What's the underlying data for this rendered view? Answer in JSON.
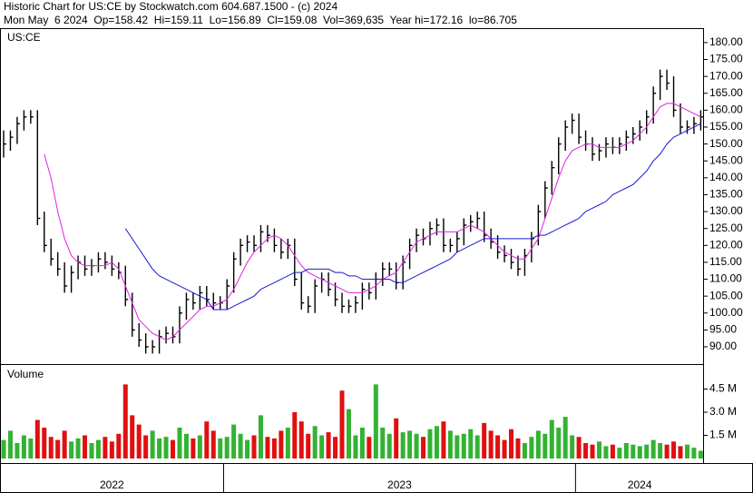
{
  "chart_data": {
    "type": "stock",
    "title": "Historic Chart for US:CE by Stockwatch.com 604.687.1500 - (c) 2024",
    "subtitle": "Mon May  6 2024  Op=158.42  Hi=159.11  Lo=156.89  Cl=159.08  Vol=369,635  Year hi=172.16  lo=86.705",
    "symbol_label": "US:CE",
    "volume_label": "Volume",
    "bar_color": "#000000",
    "ylim": [
      84.9,
      184
    ],
    "yticks": [
      {
        "value": 90,
        "label": "90.00"
      },
      {
        "value": 95,
        "label": "95.00"
      },
      {
        "value": 100,
        "label": "100.00"
      },
      {
        "value": 105,
        "label": "105.00"
      },
      {
        "value": 110,
        "label": "110.00"
      },
      {
        "value": 115,
        "label": "115.00"
      },
      {
        "value": 120,
        "label": "120.00"
      },
      {
        "value": 125,
        "label": "125.00"
      },
      {
        "value": 130,
        "label": "130.00"
      },
      {
        "value": 135,
        "label": "135.00"
      },
      {
        "value": 140,
        "label": "140.00"
      },
      {
        "value": 145,
        "label": "145.00"
      },
      {
        "value": 150,
        "label": "150.00"
      },
      {
        "value": 155,
        "label": "155.00"
      },
      {
        "value": 160,
        "label": "160.00"
      },
      {
        "value": 165,
        "label": "165.00"
      },
      {
        "value": 170,
        "label": "170.00"
      },
      {
        "value": 175,
        "label": "175.00"
      },
      {
        "value": 180,
        "label": "180.00"
      }
    ],
    "high": [
      154,
      154,
      158,
      160,
      160,
      160,
      130,
      122,
      118,
      115,
      114,
      117,
      117,
      116,
      118,
      118,
      117,
      115,
      114,
      106,
      97,
      94,
      92,
      95,
      96,
      96,
      102,
      106,
      106,
      108,
      108,
      106,
      105,
      110,
      118,
      122,
      123,
      123,
      126,
      126,
      125,
      122,
      122,
      122,
      112,
      105,
      110,
      112,
      112,
      109,
      106,
      104,
      105,
      109,
      109,
      112,
      115,
      115,
      115,
      117,
      122,
      125,
      125,
      127,
      128,
      128,
      122,
      124,
      128,
      129,
      130,
      130,
      125,
      123,
      120,
      119,
      117,
      119,
      124,
      132,
      139,
      145,
      152,
      157,
      159,
      159,
      154,
      152,
      150,
      152,
      152,
      152,
      154,
      155,
      157,
      160,
      167,
      172,
      172,
      170,
      162,
      157,
      158,
      160
    ],
    "low": [
      146,
      148,
      150,
      154,
      156,
      126,
      118,
      114,
      111,
      106,
      106,
      110,
      111,
      111,
      112,
      113,
      111,
      110,
      102,
      93,
      90,
      88,
      88,
      88,
      91,
      91,
      91,
      98,
      101,
      101,
      102,
      101,
      101,
      101,
      106,
      114,
      118,
      118,
      118,
      121,
      118,
      116,
      116,
      108,
      101,
      100,
      100,
      106,
      105,
      102,
      100,
      100,
      100,
      101,
      104,
      104,
      108,
      111,
      107,
      107,
      113,
      118,
      120,
      120,
      123,
      118,
      118,
      118,
      120,
      124,
      125,
      121,
      119,
      116,
      115,
      113,
      111,
      111,
      115,
      120,
      128,
      135,
      141,
      148,
      153,
      150,
      148,
      145,
      145,
      146,
      147,
      147,
      148,
      150,
      151,
      153,
      156,
      163,
      166,
      158,
      153,
      153,
      153,
      154
    ],
    "close": [
      150,
      152,
      156,
      158,
      158,
      128,
      120,
      116,
      113,
      108,
      112,
      115,
      113,
      114,
      116,
      115,
      113,
      112,
      104,
      95,
      92,
      90,
      90,
      93,
      94,
      93,
      100,
      104,
      103,
      106,
      104,
      103,
      103,
      108,
      116,
      120,
      121,
      120,
      124,
      123,
      120,
      118,
      120,
      110,
      103,
      102,
      108,
      110,
      107,
      104,
      102,
      102,
      103,
      107,
      106,
      110,
      113,
      113,
      109,
      115,
      120,
      123,
      122,
      125,
      126,
      120,
      120,
      122,
      126,
      127,
      128,
      123,
      121,
      118,
      117,
      115,
      113,
      117,
      122,
      130,
      137,
      143,
      150,
      155,
      157,
      152,
      150,
      147,
      148,
      150,
      149,
      150,
      152,
      153,
      155,
      158,
      165,
      170,
      168,
      160,
      155,
      155,
      156,
      158
    ],
    "moving_averages": [
      {
        "color": "#e020e0",
        "values": [
          null,
          null,
          null,
          null,
          null,
          null,
          147,
          140,
          130,
          122,
          117,
          115,
          114,
          114,
          114,
          114,
          115,
          113,
          108,
          103,
          98,
          96,
          94,
          93,
          92,
          93,
          95,
          97,
          99,
          101,
          102,
          102,
          103,
          104,
          107,
          111,
          115,
          118,
          120,
          122,
          123,
          122,
          120,
          117,
          114,
          112,
          111,
          110,
          109,
          108,
          107,
          106,
          106,
          106,
          107,
          108,
          110,
          111,
          112,
          115,
          118,
          121,
          122,
          123,
          124,
          124,
          124,
          124,
          125,
          126,
          125,
          124,
          122,
          120,
          118,
          117,
          116,
          116,
          119,
          122,
          128,
          134,
          140,
          145,
          148,
          149,
          150,
          150,
          149,
          149,
          149,
          149,
          150,
          151,
          153,
          155,
          158,
          161,
          162,
          162,
          161,
          160,
          159,
          158
        ]
      },
      {
        "color": "#1a1ad0",
        "values": [
          null,
          null,
          null,
          null,
          null,
          null,
          null,
          null,
          null,
          null,
          null,
          null,
          null,
          null,
          null,
          null,
          null,
          null,
          125,
          122,
          119,
          116,
          113,
          111,
          110,
          109,
          108,
          107,
          106,
          105,
          104,
          101,
          101,
          101,
          102,
          103,
          104,
          105,
          107,
          108,
          109,
          110,
          111,
          112,
          112,
          113,
          113,
          113,
          113,
          112,
          112,
          111,
          111,
          110,
          110,
          110,
          110,
          110,
          109,
          109,
          110,
          111,
          112,
          113,
          114,
          115,
          116,
          118,
          119,
          120,
          121,
          122,
          122,
          122,
          122,
          122,
          122,
          122,
          122,
          123,
          123,
          124,
          125,
          126,
          127,
          128,
          130,
          131,
          132,
          133,
          135,
          136,
          137,
          138,
          140,
          142,
          145,
          147,
          150,
          152,
          153,
          154,
          155,
          156
        ]
      }
    ],
    "volume": {
      "up_color": "#33b233",
      "down_color": "#e01010",
      "ylim": [
        0,
        6
      ],
      "yticks": [
        {
          "value": 1.5,
          "label": "1.5 M"
        },
        {
          "value": 3.0,
          "label": "3.0 M"
        },
        {
          "value": 4.5,
          "label": "4.5 M"
        }
      ],
      "values": [
        1.2,
        1.8,
        1.0,
        1.5,
        1.3,
        2.5,
        2.0,
        1.4,
        1.2,
        1.8,
        1.1,
        1.3,
        1.5,
        1.0,
        1.2,
        1.4,
        1.1,
        1.6,
        4.8,
        2.8,
        2.2,
        1.5,
        1.8,
        1.3,
        1.4,
        1.2,
        2.0,
        1.6,
        1.3,
        1.5,
        2.4,
        1.8,
        1.3,
        1.4,
        2.2,
        1.6,
        1.2,
        1.5,
        2.8,
        1.4,
        1.3,
        1.8,
        2.0,
        3.0,
        2.4,
        1.6,
        2.1,
        1.5,
        1.7,
        1.4,
        4.4,
        3.2,
        1.5,
        2.0,
        1.4,
        4.8,
        2.0,
        1.6,
        2.6,
        1.7,
        1.8,
        1.6,
        1.4,
        1.9,
        2.1,
        2.4,
        1.8,
        1.5,
        1.6,
        1.9,
        1.5,
        2.3,
        1.8,
        1.5,
        1.2,
        1.9,
        1.3,
        1.0,
        1.4,
        1.8,
        1.6,
        2.5,
        2.0,
        2.7,
        1.5,
        1.4,
        1.0,
        0.9,
        1.1,
        0.8,
        0.9,
        0.7,
        1.0,
        0.9,
        0.8,
        0.9,
        1.2,
        1.0,
        0.9,
        1.1,
        0.8,
        0.9,
        0.7,
        0.5
      ]
    },
    "year_bands": [
      {
        "label": "2022",
        "start_index": 0
      },
      {
        "label": "2023",
        "start_index": 33
      },
      {
        "label": "2024",
        "start_index": 85
      }
    ]
  }
}
